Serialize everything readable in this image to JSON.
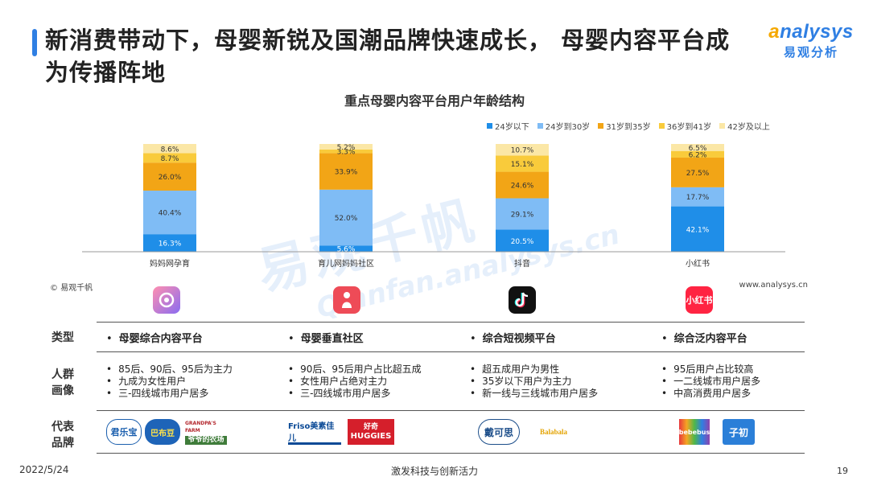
{
  "header": {
    "title": "新消费带动下，母婴新锐及国潮品牌快速成长， 母婴内容平台成为传播阵地",
    "logo_en_a": "a",
    "logo_en_rest": "nalysys",
    "logo_cn": "易观分析"
  },
  "watermark": {
    "cn": "易观千帆",
    "en": "Qianfan.analysys.cn"
  },
  "colors": {
    "accent": "#2f7fe3",
    "s1": "#1f8ee8",
    "s2": "#7fbcf5",
    "s3": "#f2a516",
    "s4": "#f9cb3b",
    "s5": "#fbe7a6"
  },
  "chart_data": {
    "type": "bar",
    "stacked": true,
    "title": "重点母婴内容平台用户年龄结构",
    "categories": [
      "妈妈网孕育",
      "育儿网妈妈社区",
      "抖音",
      "小红书"
    ],
    "series": [
      {
        "name": "24岁以下",
        "values": [
          16.3,
          5.6,
          20.5,
          42.1
        ]
      },
      {
        "name": "24岁到30岁",
        "values": [
          40.4,
          52.0,
          29.1,
          17.7
        ]
      },
      {
        "name": "31岁到35岁",
        "values": [
          26.0,
          33.9,
          24.6,
          27.5
        ]
      },
      {
        "name": "36岁到41岁",
        "values": [
          8.7,
          3.3,
          15.1,
          6.2
        ]
      },
      {
        "name": "42岁及以上",
        "values": [
          8.6,
          5.2,
          10.7,
          6.5
        ]
      }
    ],
    "ylim": [
      0,
      100
    ],
    "legend_position": "top-right"
  },
  "source": {
    "left": "© 易观千帆",
    "right": "www.analysys.cn"
  },
  "apps": [
    {
      "icon": "mamawang-app-icon"
    },
    {
      "icon": "yuerwang-app-icon"
    },
    {
      "icon": "douyin-app-icon"
    },
    {
      "icon": "xiaohongshu-app-icon",
      "text": "小红书"
    }
  ],
  "table": {
    "row_labels": {
      "type": "类型",
      "audience": "人群\n画像",
      "brands": "代表\n品牌"
    },
    "types": [
      "母婴综合内容平台",
      "母婴垂直社区",
      "综合短视频平台",
      "综合泛内容平台"
    ],
    "audience": [
      [
        "85后、90后、95后为主力",
        "九成为女性用户",
        "三-四线城市用户居多"
      ],
      [
        "90后、95后用户占比超五成",
        "女性用户占绝对主力",
        "三-四线城市用户居多"
      ],
      [
        "超五成用户为男性",
        "35岁以下用户为主力",
        "新一线与三线城市用户居多"
      ],
      [
        "95后用户占比较高",
        "一二线城市用户居多",
        "中高消费用户居多"
      ]
    ],
    "brands": [
      [
        "君乐宝",
        "巴布豆",
        "GRANDPA'S FARM",
        "爷爷的农场"
      ],
      [
        "Friso美素佳儿",
        "好奇",
        "HUGGIES"
      ],
      [
        "戴可思",
        "Balabala"
      ],
      [
        "bebebus",
        "子初"
      ]
    ]
  },
  "footer": {
    "date": "2022/5/24",
    "slogan": "激发科技与创新活力",
    "page": "19"
  }
}
